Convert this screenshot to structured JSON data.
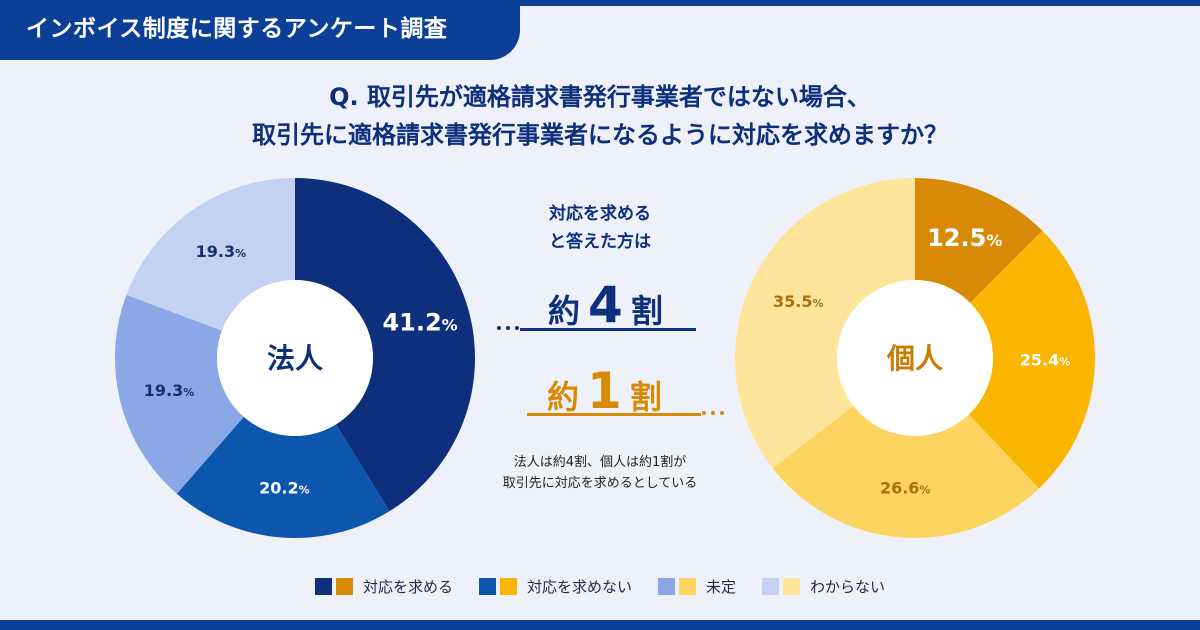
{
  "header": {
    "title": "インボイス制度に関するアンケート調査"
  },
  "question": {
    "line1": "Q. 取引先が適格請求書発行事業者ではない場合、",
    "line2": "取引先に適格請求書発行事業者になるように対応を求めますか？"
  },
  "summary": {
    "caption_line1": "対応を求める",
    "caption_line2": "と答えた方は",
    "corp_prefix": "約",
    "corp_number": "4",
    "corp_suffix": "割",
    "indiv_prefix": "約",
    "indiv_number": "1",
    "indiv_suffix": "割",
    "note_line1": "法人は約4割、個人は約1割が",
    "note_line2": "取引先に対応を求めるとしている"
  },
  "legend": [
    {
      "label": "対応を求める",
      "corp_color": "#0d2f7c",
      "indiv_color": "#d88a06"
    },
    {
      "label": "対応を求めない",
      "corp_color": "#0c56ad",
      "indiv_color": "#fab500"
    },
    {
      "label": "未定",
      "corp_color": "#8aa8e6",
      "indiv_color": "#fed460"
    },
    {
      "label": "わからない",
      "corp_color": "#c3d1f3",
      "indiv_color": "#fee59b"
    }
  ],
  "chart_data": [
    {
      "type": "pie",
      "title": "法人",
      "categories": [
        "対応を求める",
        "対応を求めない",
        "未定",
        "わからない"
      ],
      "values": [
        41.2,
        20.2,
        19.3,
        19.3
      ],
      "labels": [
        "41.2",
        "20.2",
        "19.3",
        "19.3"
      ],
      "unit": "%",
      "colors": [
        "#0d2f7c",
        "#0c56ad",
        "#8aa8e6",
        "#c3d1f3"
      ],
      "label_colors": [
        "#ffffff",
        "#ffffff",
        "#16306b",
        "#16306b"
      ],
      "center_color": "#0d2f7c"
    },
    {
      "type": "pie",
      "title": "個人",
      "categories": [
        "対応を求める",
        "対応を求めない",
        "未定",
        "わからない"
      ],
      "values": [
        12.5,
        25.4,
        26.6,
        35.5
      ],
      "labels": [
        "12.5",
        "25.4",
        "26.6",
        "35.5"
      ],
      "unit": "%",
      "colors": [
        "#d88a06",
        "#fab500",
        "#fed460",
        "#fee59b"
      ],
      "label_colors": [
        "#ffffff",
        "#ffffff",
        "#a8700e",
        "#a8700e"
      ],
      "center_color": "#c97d00"
    }
  ]
}
